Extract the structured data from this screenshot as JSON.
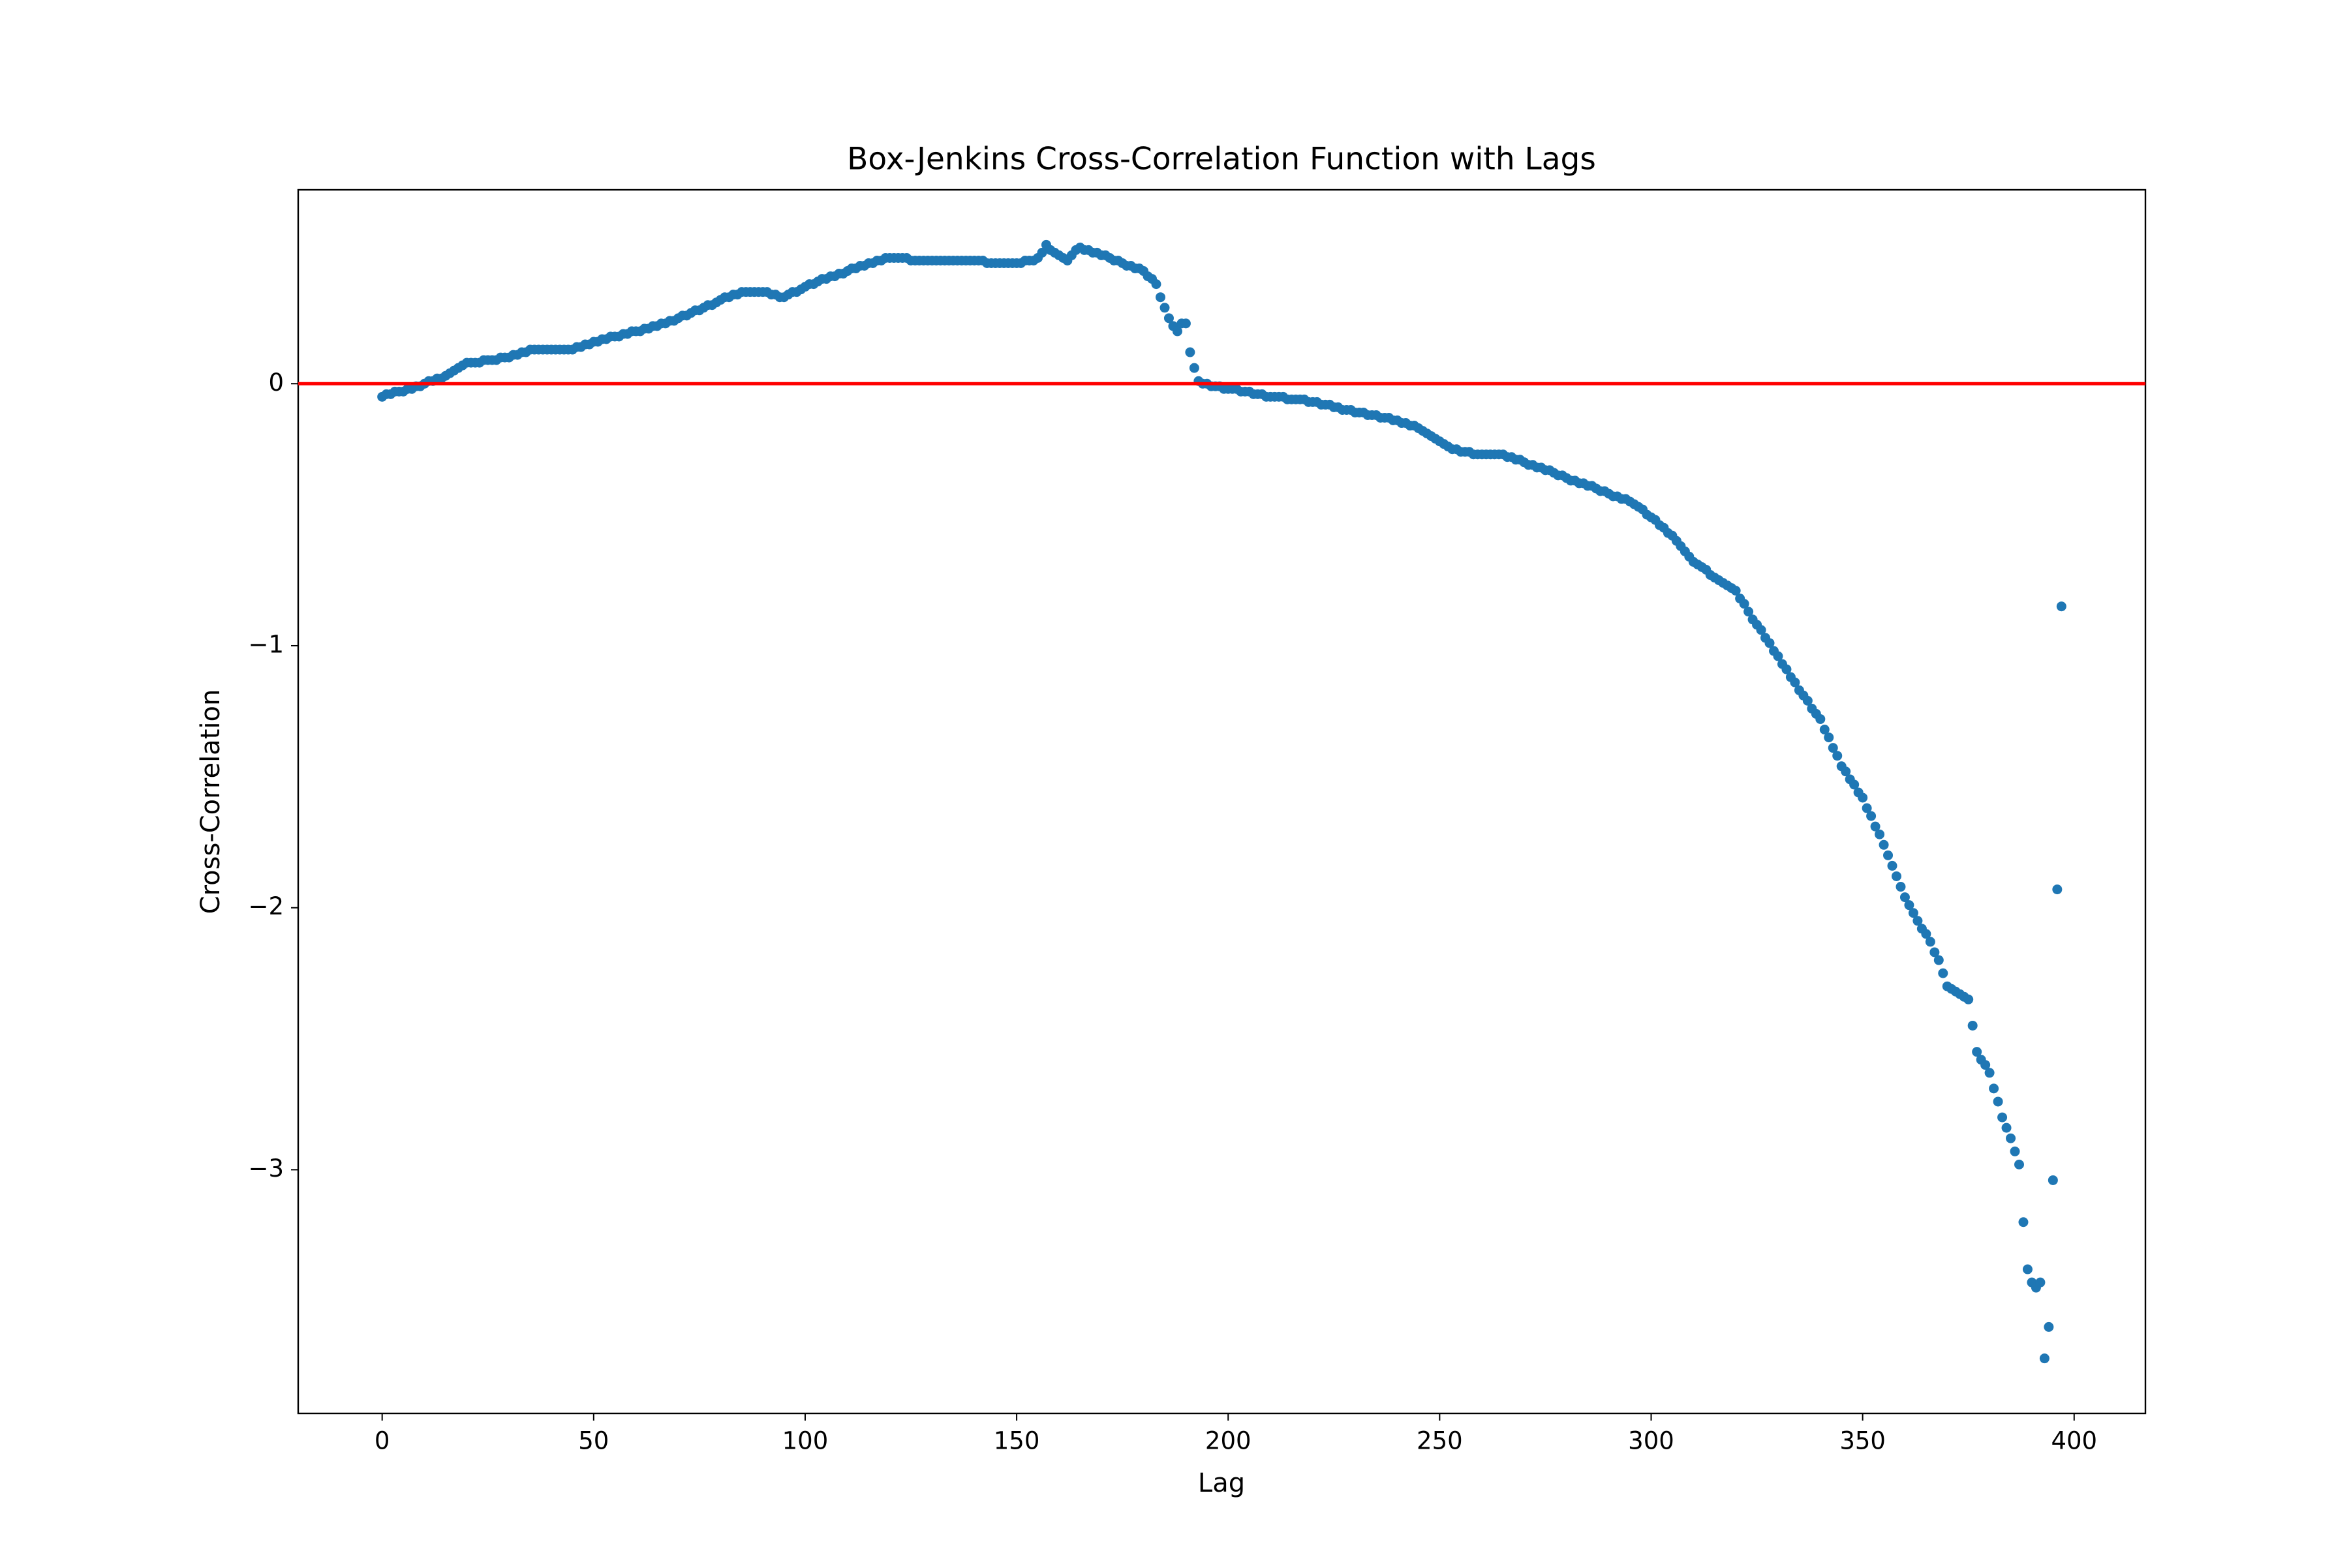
{
  "chart_data": {
    "type": "scatter",
    "title": "Box-Jenkins Cross-Correlation Function with Lags",
    "x_label": "Lag",
    "y_label": "Cross-Correlation",
    "color": "#1f77b4",
    "reference_line": {
      "y": 0,
      "color": "#ff0000"
    },
    "xlim": [
      -19.85,
      416.85
    ],
    "ylim": [
      -3.93,
      0.74
    ],
    "xticks": [
      0,
      50,
      100,
      150,
      200,
      250,
      300,
      350,
      400
    ],
    "yticks": [
      -3,
      -2,
      -1,
      0
    ],
    "x": [
      0,
      1,
      2,
      3,
      4,
      5,
      6,
      7,
      8,
      9,
      10,
      11,
      12,
      13,
      14,
      15,
      16,
      17,
      18,
      19,
      20,
      21,
      22,
      23,
      24,
      25,
      26,
      27,
      28,
      29,
      30,
      31,
      32,
      33,
      34,
      35,
      36,
      37,
      38,
      39,
      40,
      41,
      42,
      43,
      44,
      45,
      46,
      47,
      48,
      49,
      50,
      51,
      52,
      53,
      54,
      55,
      56,
      57,
      58,
      59,
      60,
      61,
      62,
      63,
      64,
      65,
      66,
      67,
      68,
      69,
      70,
      71,
      72,
      73,
      74,
      75,
      76,
      77,
      78,
      79,
      80,
      81,
      82,
      83,
      84,
      85,
      86,
      87,
      88,
      89,
      90,
      91,
      92,
      93,
      94,
      95,
      96,
      97,
      98,
      99,
      100,
      101,
      102,
      103,
      104,
      105,
      106,
      107,
      108,
      109,
      110,
      111,
      112,
      113,
      114,
      115,
      116,
      117,
      118,
      119,
      120,
      121,
      122,
      123,
      124,
      125,
      126,
      127,
      128,
      129,
      130,
      131,
      132,
      133,
      134,
      135,
      136,
      137,
      138,
      139,
      140,
      141,
      142,
      143,
      144,
      145,
      146,
      147,
      148,
      149,
      150,
      151,
      152,
      153,
      154,
      155,
      156,
      157,
      158,
      159,
      160,
      161,
      162,
      163,
      164,
      165,
      166,
      167,
      168,
      169,
      170,
      171,
      172,
      173,
      174,
      175,
      176,
      177,
      178,
      179,
      180,
      181,
      182,
      183,
      184,
      185,
      186,
      187,
      188,
      189,
      190,
      191,
      192,
      193,
      194,
      195,
      196,
      197,
      198,
      199,
      200,
      201,
      202,
      203,
      204,
      205,
      206,
      207,
      208,
      209,
      210,
      211,
      212,
      213,
      214,
      215,
      216,
      217,
      218,
      219,
      220,
      221,
      222,
      223,
      224,
      225,
      226,
      227,
      228,
      229,
      230,
      231,
      232,
      233,
      234,
      235,
      236,
      237,
      238,
      239,
      240,
      241,
      242,
      243,
      244,
      245,
      246,
      247,
      248,
      249,
      250,
      251,
      252,
      253,
      254,
      255,
      256,
      257,
      258,
      259,
      260,
      261,
      262,
      263,
      264,
      265,
      266,
      267,
      268,
      269,
      270,
      271,
      272,
      273,
      274,
      275,
      276,
      277,
      278,
      279,
      280,
      281,
      282,
      283,
      284,
      285,
      286,
      287,
      288,
      289,
      290,
      291,
      292,
      293,
      294,
      295,
      296,
      297,
      298,
      299,
      300,
      301,
      302,
      303,
      304,
      305,
      306,
      307,
      308,
      309,
      310,
      311,
      312,
      313,
      314,
      315,
      316,
      317,
      318,
      319,
      320,
      321,
      322,
      323,
      324,
      325,
      326,
      327,
      328,
      329,
      330,
      331,
      332,
      333,
      334,
      335,
      336,
      337,
      338,
      339,
      340,
      341,
      342,
      343,
      344,
      345,
      346,
      347,
      348,
      349,
      350,
      351,
      352,
      353,
      354,
      355,
      356,
      357,
      358,
      359,
      360,
      361,
      362,
      363,
      364,
      365,
      366,
      367,
      368,
      369,
      370,
      371,
      372,
      373,
      374,
      375,
      376,
      377,
      378,
      379,
      380,
      381,
      382,
      383,
      384,
      385,
      386,
      387,
      388,
      389,
      390,
      391,
      392,
      393,
      394,
      395,
      396,
      397
    ],
    "values": [
      -0.05,
      -0.04,
      -0.04,
      -0.03,
      -0.03,
      -0.03,
      -0.02,
      -0.02,
      -0.01,
      -0.01,
      0.0,
      0.01,
      0.01,
      0.02,
      0.02,
      0.03,
      0.04,
      0.05,
      0.06,
      0.07,
      0.08,
      0.08,
      0.08,
      0.08,
      0.09,
      0.09,
      0.09,
      0.09,
      0.1,
      0.1,
      0.1,
      0.11,
      0.11,
      0.12,
      0.12,
      0.13,
      0.13,
      0.13,
      0.13,
      0.13,
      0.13,
      0.13,
      0.13,
      0.13,
      0.13,
      0.13,
      0.14,
      0.14,
      0.15,
      0.15,
      0.16,
      0.16,
      0.17,
      0.17,
      0.18,
      0.18,
      0.18,
      0.19,
      0.19,
      0.2,
      0.2,
      0.2,
      0.21,
      0.21,
      0.22,
      0.22,
      0.23,
      0.23,
      0.24,
      0.24,
      0.25,
      0.26,
      0.26,
      0.27,
      0.28,
      0.28,
      0.29,
      0.3,
      0.3,
      0.31,
      0.32,
      0.33,
      0.33,
      0.34,
      0.34,
      0.35,
      0.35,
      0.35,
      0.35,
      0.35,
      0.35,
      0.35,
      0.34,
      0.34,
      0.33,
      0.33,
      0.34,
      0.35,
      0.35,
      0.36,
      0.37,
      0.38,
      0.38,
      0.39,
      0.4,
      0.4,
      0.41,
      0.41,
      0.42,
      0.42,
      0.43,
      0.44,
      0.44,
      0.45,
      0.45,
      0.46,
      0.46,
      0.47,
      0.47,
      0.48,
      0.48,
      0.48,
      0.48,
      0.48,
      0.48,
      0.47,
      0.47,
      0.47,
      0.47,
      0.47,
      0.47,
      0.47,
      0.47,
      0.47,
      0.47,
      0.47,
      0.47,
      0.47,
      0.47,
      0.47,
      0.47,
      0.47,
      0.47,
      0.46,
      0.46,
      0.46,
      0.46,
      0.46,
      0.46,
      0.46,
      0.46,
      0.46,
      0.47,
      0.47,
      0.47,
      0.48,
      0.5,
      0.53,
      0.51,
      0.5,
      0.49,
      0.48,
      0.47,
      0.49,
      0.51,
      0.52,
      0.51,
      0.51,
      0.5,
      0.5,
      0.49,
      0.49,
      0.48,
      0.47,
      0.47,
      0.46,
      0.45,
      0.45,
      0.44,
      0.44,
      0.43,
      0.41,
      0.4,
      0.38,
      0.33,
      0.29,
      0.25,
      0.22,
      0.2,
      0.23,
      0.23,
      0.12,
      0.06,
      0.01,
      0.0,
      0.0,
      -0.01,
      -0.01,
      -0.01,
      -0.02,
      -0.02,
      -0.02,
      -0.02,
      -0.03,
      -0.03,
      -0.03,
      -0.04,
      -0.04,
      -0.04,
      -0.05,
      -0.05,
      -0.05,
      -0.05,
      -0.05,
      -0.06,
      -0.06,
      -0.06,
      -0.06,
      -0.06,
      -0.07,
      -0.07,
      -0.07,
      -0.08,
      -0.08,
      -0.08,
      -0.09,
      -0.09,
      -0.1,
      -0.1,
      -0.1,
      -0.11,
      -0.11,
      -0.11,
      -0.12,
      -0.12,
      -0.12,
      -0.13,
      -0.13,
      -0.13,
      -0.14,
      -0.14,
      -0.15,
      -0.15,
      -0.16,
      -0.16,
      -0.17,
      -0.18,
      -0.19,
      -0.2,
      -0.21,
      -0.22,
      -0.23,
      -0.24,
      -0.25,
      -0.25,
      -0.26,
      -0.26,
      -0.26,
      -0.27,
      -0.27,
      -0.27,
      -0.27,
      -0.27,
      -0.27,
      -0.27,
      -0.27,
      -0.28,
      -0.28,
      -0.29,
      -0.29,
      -0.3,
      -0.31,
      -0.31,
      -0.32,
      -0.32,
      -0.33,
      -0.33,
      -0.34,
      -0.35,
      -0.35,
      -0.36,
      -0.37,
      -0.37,
      -0.38,
      -0.38,
      -0.39,
      -0.39,
      -0.4,
      -0.41,
      -0.41,
      -0.42,
      -0.43,
      -0.43,
      -0.44,
      -0.44,
      -0.45,
      -0.46,
      -0.47,
      -0.48,
      -0.5,
      -0.51,
      -0.52,
      -0.54,
      -0.55,
      -0.57,
      -0.58,
      -0.6,
      -0.62,
      -0.64,
      -0.66,
      -0.68,
      -0.69,
      -0.7,
      -0.71,
      -0.73,
      -0.74,
      -0.75,
      -0.76,
      -0.77,
      -0.78,
      -0.79,
      -0.82,
      -0.84,
      -0.87,
      -0.9,
      -0.92,
      -0.94,
      -0.97,
      -0.99,
      -1.02,
      -1.04,
      -1.07,
      -1.09,
      -1.12,
      -1.14,
      -1.17,
      -1.19,
      -1.21,
      -1.24,
      -1.26,
      -1.28,
      -1.32,
      -1.35,
      -1.39,
      -1.42,
      -1.46,
      -1.48,
      -1.51,
      -1.53,
      -1.56,
      -1.58,
      -1.62,
      -1.65,
      -1.69,
      -1.72,
      -1.76,
      -1.8,
      -1.84,
      -1.88,
      -1.92,
      -1.96,
      -1.99,
      -2.02,
      -2.05,
      -2.08,
      -2.1,
      -2.13,
      -2.17,
      -2.2,
      -2.25,
      -2.3,
      -2.31,
      -2.32,
      -2.33,
      -2.34,
      -2.35,
      -2.45,
      -2.55,
      -2.58,
      -2.6,
      -2.63,
      -2.69,
      -2.74,
      -2.8,
      -2.84,
      -2.88,
      -2.93,
      -2.98,
      -3.2,
      -3.38,
      -3.43,
      -3.45,
      -3.43,
      -3.72,
      -3.6,
      -3.04,
      -1.93,
      -0.85
    ]
  }
}
